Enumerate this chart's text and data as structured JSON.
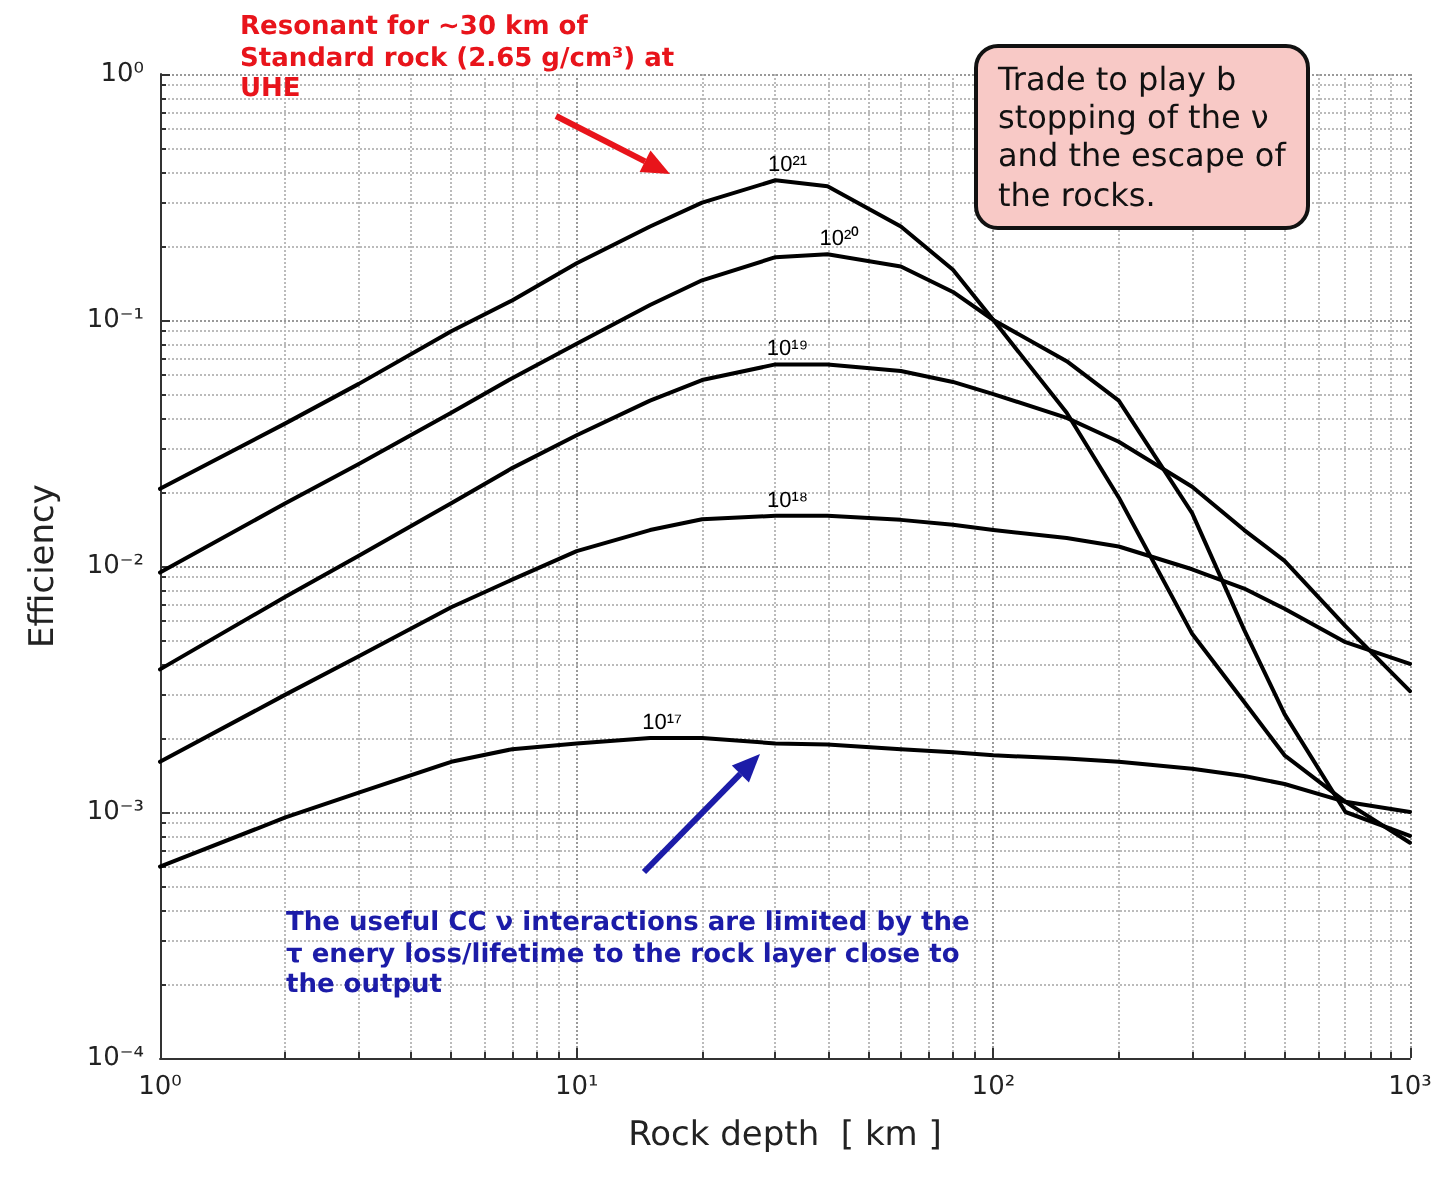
{
  "chart_data": {
    "type": "line",
    "xlabel": "Rock depth  [ km ]",
    "ylabel": "Efficiency",
    "log": "xy",
    "grid": true,
    "legend": false,
    "marker": "none",
    "line_style": "solid",
    "xlim": [
      1,
      1000
    ],
    "ylim": [
      0.0001,
      1
    ],
    "xticks": [
      {
        "value": 1,
        "label": "10⁰"
      },
      {
        "value": 10,
        "label": "10¹"
      },
      {
        "value": 100,
        "label": "10²"
      },
      {
        "value": 1000,
        "label": "10³"
      }
    ],
    "yticks": [
      {
        "value": 0.0001,
        "label": "10⁻⁴"
      },
      {
        "value": 0.001,
        "label": "10⁻³"
      },
      {
        "value": 0.01,
        "label": "10⁻²"
      },
      {
        "value": 0.1,
        "label": "10⁻¹"
      },
      {
        "value": 1,
        "label": "10⁰"
      }
    ],
    "x": [
      1,
      2,
      3,
      5,
      7,
      10,
      15,
      20,
      30,
      40,
      60,
      80,
      100,
      150,
      200,
      300,
      400,
      500,
      700,
      1000
    ],
    "series": [
      {
        "name": "10²¹",
        "color": "#000000",
        "values": [
          0.0206,
          0.038,
          0.055,
          0.09,
          0.12,
          0.17,
          0.24,
          0.3,
          0.37,
          0.35,
          0.24,
          0.16,
          0.1,
          0.042,
          0.019,
          0.0053,
          0.0028,
          0.0017,
          0.0011,
          0.00075
        ]
      },
      {
        "name": "10²⁰",
        "color": "#000000",
        "values": [
          0.0094,
          0.018,
          0.026,
          0.042,
          0.058,
          0.08,
          0.115,
          0.145,
          0.18,
          0.185,
          0.165,
          0.13,
          0.1,
          0.068,
          0.047,
          0.0164,
          0.0055,
          0.0025,
          0.001,
          0.0008
        ]
      },
      {
        "name": "10¹⁹",
        "color": "#000000",
        "values": [
          0.0038,
          0.0075,
          0.011,
          0.018,
          0.025,
          0.034,
          0.047,
          0.057,
          0.066,
          0.066,
          0.062,
          0.056,
          0.05,
          0.04,
          0.032,
          0.021,
          0.014,
          0.0105,
          0.0057,
          0.0031
        ]
      },
      {
        "name": "10¹⁸",
        "color": "#000000",
        "values": [
          0.0016,
          0.003,
          0.0043,
          0.0068,
          0.0088,
          0.0115,
          0.014,
          0.0155,
          0.016,
          0.016,
          0.0154,
          0.0147,
          0.014,
          0.013,
          0.012,
          0.0097,
          0.0081,
          0.0067,
          0.0049,
          0.004
        ]
      },
      {
        "name": "10¹⁷",
        "color": "#000000",
        "values": [
          0.0006,
          0.00095,
          0.0012,
          0.0016,
          0.0018,
          0.0019,
          0.002,
          0.002,
          0.0019,
          0.00188,
          0.0018,
          0.00175,
          0.0017,
          0.00165,
          0.0016,
          0.0015,
          0.0014,
          0.0013,
          0.0011,
          0.001
        ]
      }
    ],
    "annotations": [
      "Resonant for ~30 km of\nStandard rock (2.65 g/cm³) at\nUHE",
      "Trade to play b\nstopping of the ν\nand the escape of\nthe rocks.",
      "The useful CC ν interactions are limited by the\nτ enery loss/lifetime to the rock layer close to\nthe output"
    ]
  }
}
